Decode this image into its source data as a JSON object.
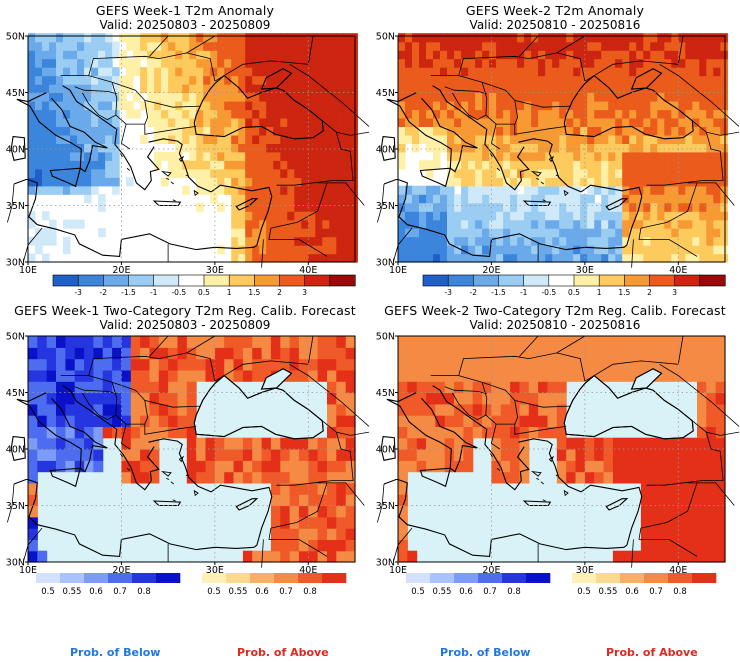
{
  "colors": {
    "land": "#ffffff",
    "sea": "#d9f2f7",
    "grid": "#9a9a9a",
    "border": "#000000",
    "below_note": "#1e78e0",
    "above_note": "#e0281e"
  },
  "panels": [
    {
      "title": "GEFS Week-1 T2m Anomaly",
      "valid": "Valid: 20250803 - 20250809",
      "kind": "anomaly",
      "map": {
        "xticks": [
          "10E",
          "20E",
          "30E",
          "40E"
        ],
        "yticks": [
          "50N",
          "45N",
          "40N",
          "35N",
          "30N"
        ]
      }
    },
    {
      "title": "GEFS Week-2 T2m Anomaly",
      "valid": "Valid: 20250810 - 20250816",
      "kind": "anomaly",
      "map": {
        "xticks": [
          "10E",
          "20E",
          "30E",
          "40E"
        ],
        "yticks": [
          "50N",
          "45N",
          "40N",
          "35N",
          "30N"
        ]
      }
    },
    {
      "title": "GEFS Week-1 Two-Category T2m Reg. Calib. Forecast",
      "valid": "Valid: 20250803 - 20250809",
      "kind": "prob",
      "map": {
        "xticks": [
          "10E",
          "20E",
          "30E",
          "40E"
        ],
        "yticks": [
          "50N",
          "45N",
          "40N",
          "35N",
          "30N"
        ]
      }
    },
    {
      "title": "GEFS Week-2 Two-Category T2m Reg. Calib. Forecast",
      "valid": "Valid: 20250810 - 20250816",
      "kind": "prob",
      "map": {
        "xticks": [
          "10E",
          "20E",
          "30E",
          "40E"
        ],
        "yticks": [
          "50N",
          "45N",
          "40N",
          "35N",
          "30N"
        ]
      }
    }
  ],
  "anomaly_colorbar": {
    "labels": [
      "-3",
      "-2",
      "-1.5",
      "-1",
      "-0.5",
      "0.5",
      "1",
      "1.5",
      "2",
      "3"
    ],
    "colors": [
      "#1f5fc8",
      "#3c85dc",
      "#6aa9ea",
      "#9bcdf3",
      "#cfe9f8",
      "#ffffff",
      "#fff0a8",
      "#fdca5e",
      "#f79a34",
      "#ea5b1c",
      "#cc2510",
      "#990a0a"
    ]
  },
  "prob_below_colorbar": {
    "labels": [
      "0.5",
      "0.55",
      "0.6",
      "0.7",
      "0.8"
    ],
    "colors": [
      "#d3e1ff",
      "#a9c3ff",
      "#7c9cf8",
      "#4d6cf0",
      "#2535e0",
      "#0a12c8"
    ]
  },
  "prob_above_colorbar": {
    "labels": [
      "0.5",
      "0.55",
      "0.6",
      "0.7",
      "0.8"
    ],
    "colors": [
      "#fff0b8",
      "#fdd890",
      "#f9b066",
      "#f48a44",
      "#ef5a28",
      "#e43018"
    ]
  },
  "notes": {
    "below": "Prob. of Below",
    "above": "Prob. of Above"
  },
  "chart_data": [
    {
      "type": "heatmap",
      "title": "GEFS Week-1 T2m Anomaly",
      "subtitle": "Valid: 20250803 - 20250809",
      "x_range": [
        "10E",
        "45E"
      ],
      "y_range": [
        "30N",
        "50N"
      ],
      "xticks": [
        "10E",
        "20E",
        "30E",
        "40E"
      ],
      "yticks": [
        "30N",
        "35N",
        "40N",
        "45N",
        "50N"
      ],
      "colorbar_levels": [
        -3,
        -2,
        -1.5,
        -1,
        -0.5,
        0.5,
        1,
        1.5,
        2,
        3
      ]
    },
    {
      "type": "heatmap",
      "title": "GEFS Week-2 T2m Anomaly",
      "subtitle": "Valid: 20250810 - 20250816",
      "x_range": [
        "10E",
        "45E"
      ],
      "y_range": [
        "30N",
        "50N"
      ],
      "xticks": [
        "10E",
        "20E",
        "30E",
        "40E"
      ],
      "yticks": [
        "30N",
        "35N",
        "40N",
        "45N",
        "50N"
      ],
      "colorbar_levels": [
        -3,
        -2,
        -1.5,
        -1,
        -0.5,
        0.5,
        1,
        1.5,
        2,
        3
      ]
    },
    {
      "type": "heatmap",
      "title": "GEFS Week-1 Two-Category T2m Reg. Calib. Forecast",
      "subtitle": "Valid: 20250803 - 20250809",
      "x_range": [
        "10E",
        "45E"
      ],
      "y_range": [
        "30N",
        "50N"
      ],
      "colorbar_below_levels": [
        0.5,
        0.55,
        0.6,
        0.7,
        0.8
      ],
      "colorbar_above_levels": [
        0.5,
        0.55,
        0.6,
        0.7,
        0.8
      ]
    },
    {
      "type": "heatmap",
      "title": "GEFS Week-2 Two-Category T2m Reg. Calib. Forecast",
      "subtitle": "Valid: 20250810 - 20250816",
      "x_range": [
        "10E",
        "45E"
      ],
      "y_range": [
        "30N",
        "50N"
      ],
      "colorbar_below_levels": [
        0.5,
        0.55,
        0.6,
        0.7,
        0.8
      ],
      "colorbar_above_levels": [
        0.5,
        0.55,
        0.6,
        0.7,
        0.8
      ]
    }
  ]
}
